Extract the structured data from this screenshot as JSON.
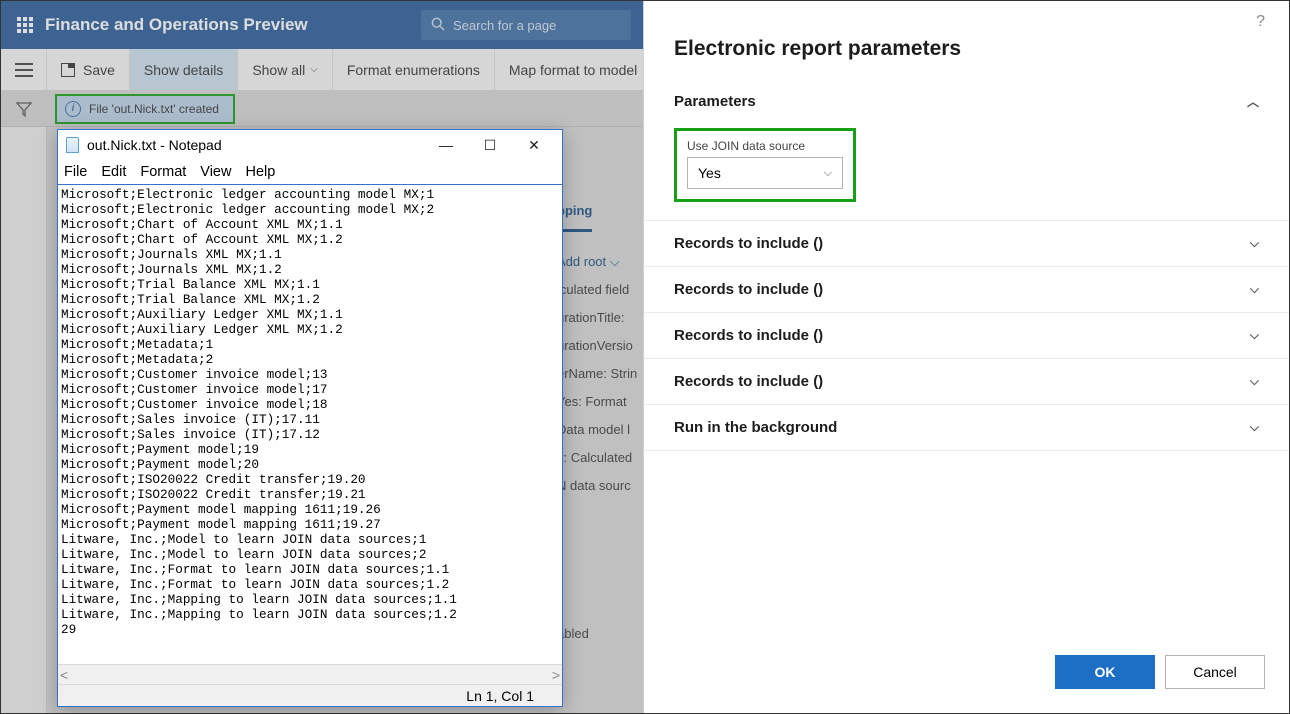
{
  "header": {
    "title": "Finance and Operations Preview",
    "search_placeholder": "Search for a page"
  },
  "toolbar": {
    "save": "Save",
    "show_details": "Show details",
    "show_all": "Show all",
    "format_enum": "Format enumerations",
    "map_format": "Map format to model",
    "more": "V"
  },
  "notification": "File 'out.Nick.txt' created",
  "bg": {
    "tab": "pping",
    "add_root": "Add root",
    "lines": [
      "lculated field",
      "urationTitle:",
      "urationVersio",
      "erName: Strin",
      "Yes: Format",
      "Data model l",
      "y: Calculated",
      "N data sourc",
      "abled"
    ]
  },
  "notepad": {
    "title": "out.Nick.txt - Notepad",
    "menu": {
      "file": "File",
      "edit": "Edit",
      "format": "Format",
      "view": "View",
      "help": "Help"
    },
    "content": "Microsoft;Electronic ledger accounting model MX;1\nMicrosoft;Electronic ledger accounting model MX;2\nMicrosoft;Chart of Account XML MX;1.1\nMicrosoft;Chart of Account XML MX;1.2\nMicrosoft;Journals XML MX;1.1\nMicrosoft;Journals XML MX;1.2\nMicrosoft;Trial Balance XML MX;1.1\nMicrosoft;Trial Balance XML MX;1.2\nMicrosoft;Auxiliary Ledger XML MX;1.1\nMicrosoft;Auxiliary Ledger XML MX;1.2\nMicrosoft;Metadata;1\nMicrosoft;Metadata;2\nMicrosoft;Customer invoice model;13\nMicrosoft;Customer invoice model;17\nMicrosoft;Customer invoice model;18\nMicrosoft;Sales invoice (IT);17.11\nMicrosoft;Sales invoice (IT);17.12\nMicrosoft;Payment model;19\nMicrosoft;Payment model;20\nMicrosoft;ISO20022 Credit transfer;19.20\nMicrosoft;ISO20022 Credit transfer;19.21\nMicrosoft;Payment model mapping 1611;19.26\nMicrosoft;Payment model mapping 1611;19.27\nLitware, Inc.;Model to learn JOIN data sources;1\nLitware, Inc.;Model to learn JOIN data sources;2\nLitware, Inc.;Format to learn JOIN data sources;1.1\nLitware, Inc.;Format to learn JOIN data sources;1.2\nLitware, Inc.;Mapping to learn JOIN data sources;1.1\nLitware, Inc.;Mapping to learn JOIN data sources;1.2\n29",
    "status": "Ln 1, Col 1",
    "winbtn": {
      "min": "—",
      "max": "☐",
      "close": "✕"
    }
  },
  "panel": {
    "title": "Electronic report parameters",
    "help": "?",
    "sections": {
      "parameters": "Parameters",
      "records1": "Records to include ()",
      "records2": "Records to include ()",
      "records3": "Records to include ()",
      "records4": "Records to include ()",
      "run_bg": "Run in the background"
    },
    "field": {
      "label": "Use JOIN data source",
      "value": "Yes"
    },
    "buttons": {
      "ok": "OK",
      "cancel": "Cancel"
    }
  }
}
